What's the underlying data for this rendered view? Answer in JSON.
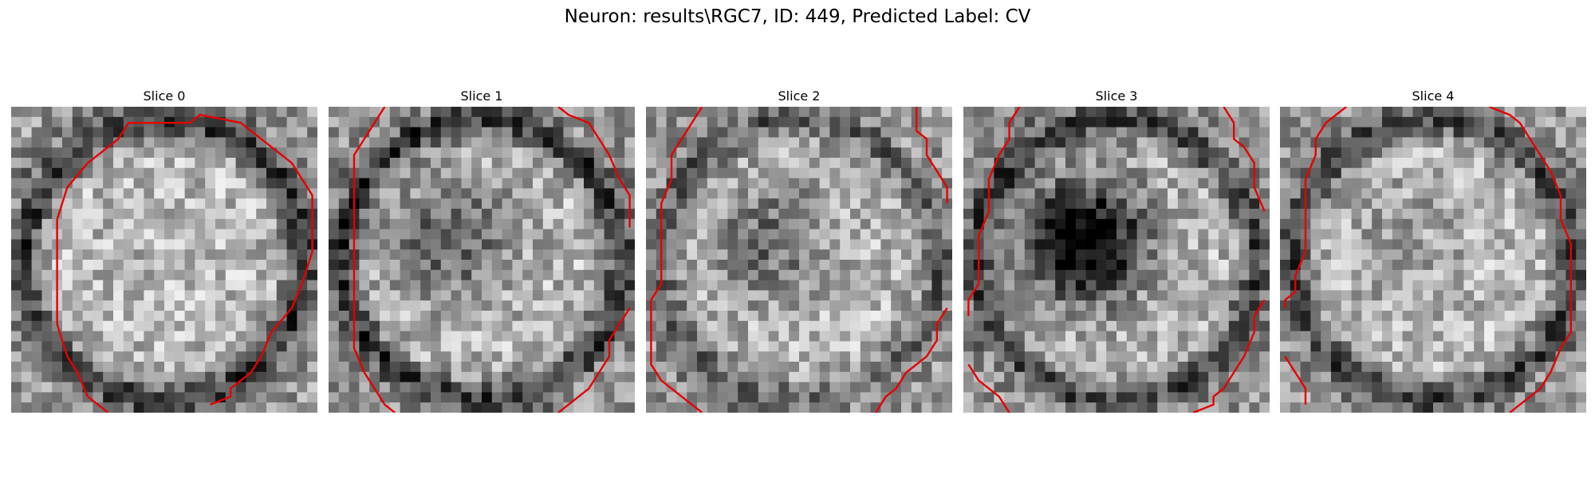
{
  "figure": {
    "title": "Neuron: results\\RGC7, ID: 449, Predicted Label: CV"
  },
  "contour_color": "#e60000",
  "grid_size": 30,
  "slices": [
    {
      "title": "Slice 0",
      "dark_ring": 0.5,
      "dark_center": 0.0,
      "seed": 11,
      "contours": [
        [
          [
            9,
            38
          ],
          [
            7,
            36
          ],
          [
            6,
            33
          ],
          [
            5,
            31
          ],
          [
            4,
            27
          ],
          [
            4,
            19
          ],
          [
            4,
            14
          ],
          [
            5,
            10
          ],
          [
            7,
            7
          ],
          [
            10,
            4
          ],
          [
            11,
            2
          ],
          [
            17,
            2
          ],
          [
            18,
            1
          ],
          [
            22,
            2
          ],
          [
            24,
            4
          ],
          [
            27,
            7
          ],
          [
            28,
            9
          ],
          [
            29,
            11
          ],
          [
            29,
            18
          ],
          [
            28,
            22
          ],
          [
            27,
            25
          ],
          [
            25,
            28
          ],
          [
            24,
            31
          ],
          [
            23,
            33
          ],
          [
            21,
            35
          ],
          [
            21,
            36
          ],
          [
            19,
            37
          ]
        ]
      ]
    },
    {
      "title": "Slice 1",
      "dark_ring": 0.5,
      "dark_center": 0.35,
      "seed": 23,
      "contours": [
        [
          [
            5,
            0
          ],
          [
            4,
            2
          ],
          [
            3,
            4
          ],
          [
            2,
            6
          ],
          [
            2,
            9
          ],
          [
            2,
            12
          ],
          [
            2,
            25
          ],
          [
            2,
            30
          ],
          [
            3,
            33
          ],
          [
            4,
            35
          ],
          [
            5,
            37
          ],
          [
            6,
            38
          ]
        ],
        [
          [
            22,
            0
          ],
          [
            23,
            1
          ],
          [
            25,
            2
          ],
          [
            26,
            4
          ],
          [
            27,
            6
          ],
          [
            28,
            9
          ],
          [
            29,
            11
          ],
          [
            29,
            15
          ]
        ],
        [
          [
            29,
            25
          ],
          [
            28,
            27
          ],
          [
            27,
            29
          ],
          [
            27,
            31
          ],
          [
            26,
            33
          ],
          [
            25,
            35
          ],
          [
            24,
            36
          ],
          [
            22,
            38
          ]
        ]
      ]
    },
    {
      "title": "Slice 2",
      "dark_ring": 0.35,
      "dark_center": 0.3,
      "seed": 37,
      "contours": [
        [
          [
            5,
            0
          ],
          [
            4,
            2
          ],
          [
            3,
            4
          ],
          [
            2,
            6
          ],
          [
            2,
            9
          ],
          [
            1,
            12
          ],
          [
            1,
            22
          ],
          [
            0,
            24
          ],
          [
            0,
            32
          ],
          [
            1,
            34
          ],
          [
            3,
            36
          ],
          [
            5,
            38
          ]
        ],
        [
          [
            26,
            0
          ],
          [
            26,
            3
          ],
          [
            27,
            4
          ],
          [
            27,
            6
          ],
          [
            28,
            8
          ],
          [
            29,
            10
          ],
          [
            29,
            12
          ]
        ],
        [
          [
            29,
            25
          ],
          [
            28,
            27
          ],
          [
            28,
            29
          ],
          [
            27,
            31
          ],
          [
            25,
            33
          ],
          [
            24,
            35
          ],
          [
            23,
            36
          ],
          [
            22,
            38
          ]
        ]
      ]
    },
    {
      "title": "Slice 3",
      "dark_ring": 0.45,
      "dark_center": 0.8,
      "seed": 53,
      "contours": [
        [
          [
            5,
            0
          ],
          [
            4,
            2
          ],
          [
            4,
            4
          ],
          [
            3,
            6
          ],
          [
            2,
            9
          ],
          [
            2,
            13
          ],
          [
            1,
            16
          ],
          [
            1,
            22
          ],
          [
            0,
            24
          ],
          [
            0,
            26
          ]
        ],
        [
          [
            0,
            32
          ],
          [
            1,
            34
          ],
          [
            2,
            35
          ],
          [
            3,
            36
          ],
          [
            4,
            38
          ]
        ],
        [
          [
            25,
            0
          ],
          [
            26,
            2
          ],
          [
            26,
            4
          ],
          [
            27,
            5
          ],
          [
            28,
            7
          ],
          [
            28,
            10
          ],
          [
            29,
            13
          ]
        ],
        [
          [
            29,
            24
          ],
          [
            28,
            26
          ],
          [
            28,
            28
          ],
          [
            27,
            31
          ],
          [
            26,
            33
          ],
          [
            25,
            35
          ],
          [
            24,
            36
          ],
          [
            24,
            37
          ],
          [
            22,
            38
          ]
        ]
      ]
    },
    {
      "title": "Slice 4",
      "dark_ring": 0.45,
      "dark_center": 0.1,
      "seed": 71,
      "contours": [
        [
          [
            6,
            0
          ],
          [
            5,
            1
          ],
          [
            4,
            2
          ],
          [
            3,
            4
          ],
          [
            3,
            6
          ],
          [
            2,
            9
          ],
          [
            2,
            13
          ],
          [
            2,
            18
          ],
          [
            1,
            21
          ],
          [
            1,
            23
          ],
          [
            0,
            24
          ],
          [
            0,
            25
          ]
        ],
        [
          [
            0,
            31
          ],
          [
            1,
            33
          ],
          [
            2,
            35
          ],
          [
            2,
            37
          ]
        ],
        [
          [
            20,
            0
          ],
          [
            22,
            1
          ],
          [
            23,
            2
          ],
          [
            24,
            4
          ],
          [
            25,
            6
          ],
          [
            26,
            8
          ],
          [
            27,
            11
          ],
          [
            27,
            14
          ],
          [
            28,
            17
          ],
          [
            28,
            28
          ],
          [
            27,
            30
          ],
          [
            26,
            33
          ],
          [
            25,
            35
          ],
          [
            24,
            36
          ],
          [
            23,
            37
          ],
          [
            22,
            38
          ]
        ]
      ]
    }
  ]
}
